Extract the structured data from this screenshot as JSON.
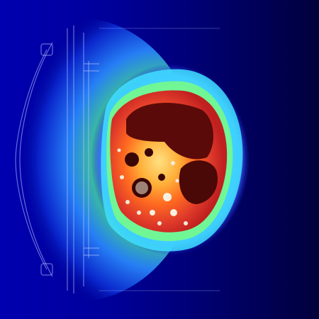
{
  "image": {
    "kind": "ct-slice-with-heatmap-overlay",
    "palette": {
      "background": "#00004a",
      "deep_blue": "#0000a8",
      "blue": "#1f4bff",
      "cyan": "#37e6ff",
      "green": "#5dff8a",
      "yellow": "#ffe43a",
      "orange": "#ff8a1f",
      "red": "#e51515",
      "dark_red": "#6a0a08",
      "bone_white": "#f3e9d6"
    }
  }
}
